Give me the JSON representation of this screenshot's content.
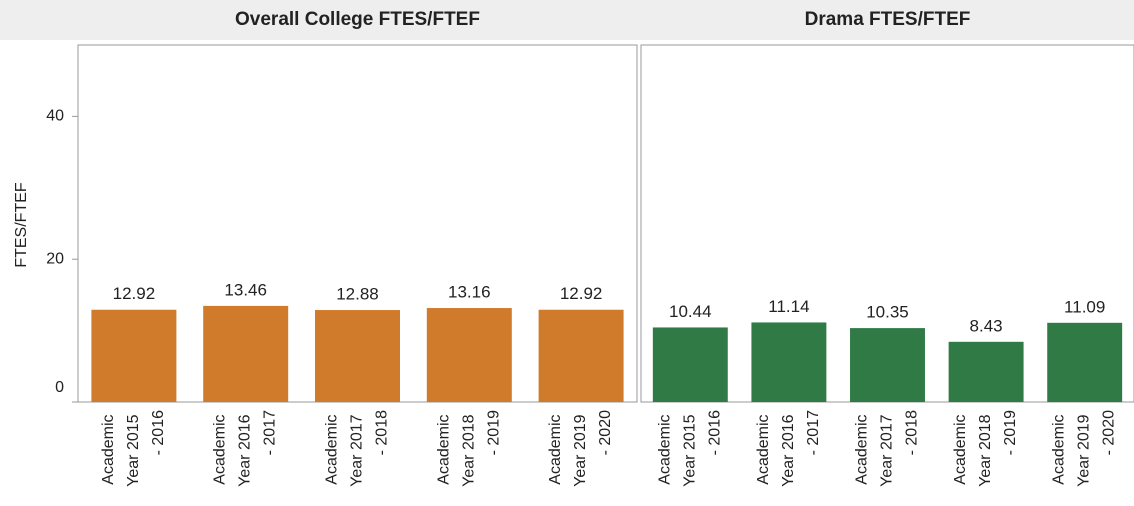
{
  "chart_data": [
    {
      "type": "bar",
      "title": "Overall College FTES/FTEF",
      "y_label": "FTES/FTEF",
      "categories": [
        "Academic Year 2015 - 2016",
        "Academic Year 2016 - 2017",
        "Academic Year 2017 - 2018",
        "Academic Year 2018 - 2019",
        "Academic Year 2019 - 2020"
      ],
      "values": [
        12.92,
        13.46,
        12.88,
        13.16,
        12.92
      ],
      "color": "#d07a2c",
      "ylim": [
        0,
        50
      ],
      "yticks": [
        0,
        20,
        40
      ]
    },
    {
      "type": "bar",
      "title": "Drama FTES/FTEF",
      "categories": [
        "Academic Year 2015 - 2016",
        "Academic Year 2016 - 2017",
        "Academic Year 2017 - 2018",
        "Academic Year 2018 - 2019",
        "Academic Year 2019 - 2020"
      ],
      "values": [
        10.44,
        11.14,
        10.35,
        8.43,
        11.09
      ],
      "color": "#2f7a45",
      "ylim": [
        0,
        50
      ],
      "yticks": [
        0,
        20,
        40
      ]
    }
  ]
}
